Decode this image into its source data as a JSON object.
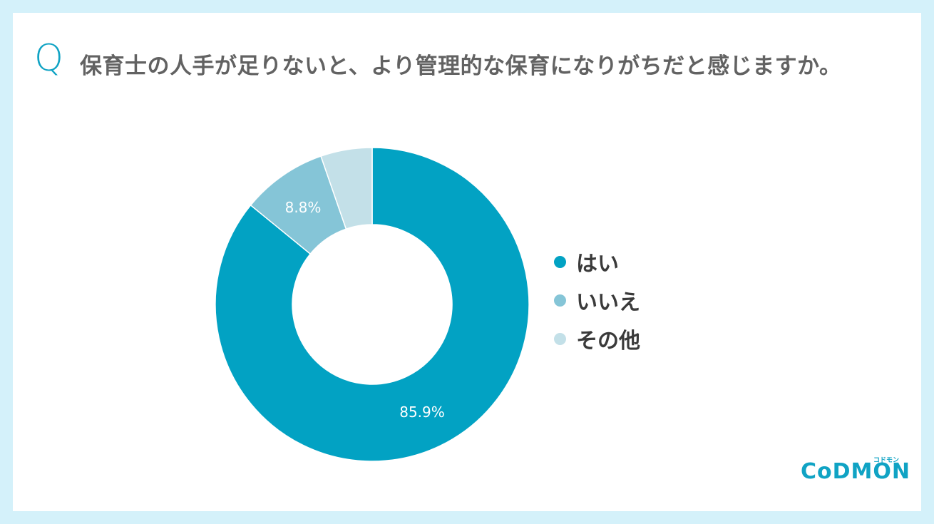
{
  "header": {
    "q_mark": "Q",
    "title": "保育士の人手が足りないと、より管理的な保育になりがちだと感じますか。"
  },
  "chart_data": {
    "type": "pie",
    "subtype": "donut",
    "title": "保育士の人手が足りないと、より管理的な保育になりがちだと感じますか。",
    "categories": [
      "はい",
      "いいえ",
      "その他"
    ],
    "values": [
      85.9,
      8.8,
      5.3
    ],
    "colors": [
      "#02a2c3",
      "#85c5d7",
      "#c3e0e8"
    ],
    "data_labels": [
      "85.9%",
      "8.8%",
      ""
    ],
    "legend_position": "right",
    "start_angle": "top, clockwise"
  },
  "labels": {
    "yes_pct": "85.9%",
    "no_pct": "8.8%"
  },
  "legend": [
    {
      "label": "はい",
      "color": "#02a2c3"
    },
    {
      "label": "いいえ",
      "color": "#85c5d7"
    },
    {
      "label": "その他",
      "color": "#c3e0e8"
    }
  ],
  "branding": {
    "logo_text": "CoDMON",
    "logo_sub": "コドモン"
  }
}
